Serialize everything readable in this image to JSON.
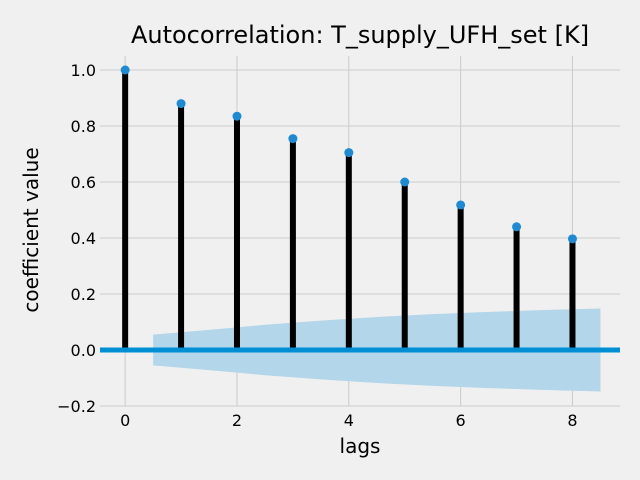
{
  "chart_data": {
    "type": "stem",
    "title": "Autocorrelation: T_supply_UFH_set [K]",
    "xlabel": "lags",
    "ylabel": "coefficient value",
    "xlim": [
      -0.45,
      8.85
    ],
    "ylim": [
      -0.2,
      1.05
    ],
    "xticks": [
      0,
      2,
      4,
      6,
      8
    ],
    "xtick_labels": [
      "0",
      "2",
      "4",
      "6",
      "8"
    ],
    "yticks": [
      -0.2,
      0.0,
      0.2,
      0.4,
      0.6,
      0.8,
      1.0
    ],
    "ytick_labels": [
      "−0.2",
      "0.0",
      "0.2",
      "0.4",
      "0.6",
      "0.8",
      "1.0"
    ],
    "grid": true,
    "lags": [
      0,
      1,
      2,
      3,
      4,
      5,
      6,
      7,
      8
    ],
    "values": [
      1.0,
      0.88,
      0.835,
      0.755,
      0.705,
      0.6,
      0.518,
      0.44,
      0.397
    ],
    "confidence_band": {
      "x": [
        0.5,
        1.5,
        2.5,
        3.5,
        4.5,
        5.5,
        6.5,
        7.5,
        8.5
      ],
      "upper": [
        0.055,
        0.072,
        0.09,
        0.105,
        0.118,
        0.128,
        0.136,
        0.143,
        0.148
      ],
      "lower": [
        -0.055,
        -0.072,
        -0.09,
        -0.105,
        -0.118,
        -0.128,
        -0.136,
        -0.143,
        -0.148
      ]
    },
    "colors": {
      "background": "#f0f0f0",
      "grid": "#cbcbcb",
      "stem": "#000000",
      "marker": "#1f8ad1",
      "zero_line": "#008fd5",
      "band": "#b3d6ea"
    }
  }
}
